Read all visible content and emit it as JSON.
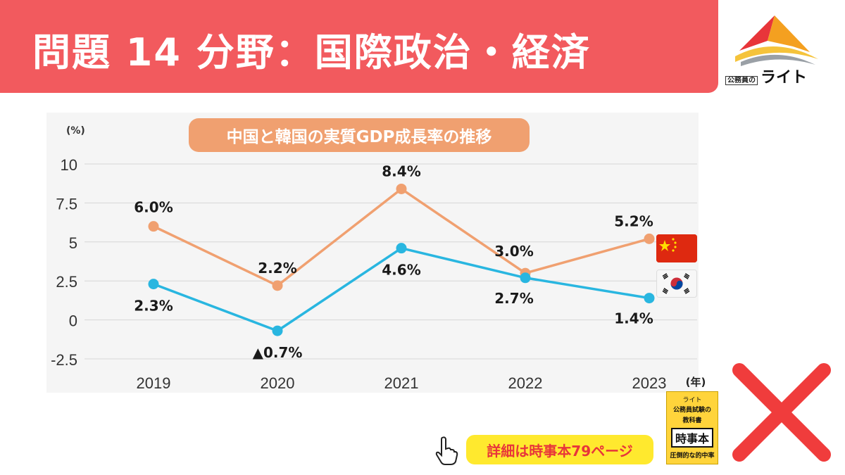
{
  "header": {
    "title": "問題 14  分野：国際政治・経済"
  },
  "logo": {
    "small_text": "公務員の",
    "brand_text": "ライト",
    "icon": "brand-logo-icon"
  },
  "chart_data": {
    "type": "line",
    "title": "中国と韓国の実質GDP成長率の推移",
    "ylabel": "(%)",
    "xlabel": "(年)",
    "categories": [
      "2019",
      "2020",
      "2021",
      "2022",
      "2023"
    ],
    "yticks": [
      "10",
      "7.5",
      "5",
      "2.5",
      "0",
      "-2.5"
    ],
    "ylim": [
      -2.5,
      10
    ],
    "grid": true,
    "series": [
      {
        "values": [
          6.0,
          2.2,
          8.4,
          3.0,
          5.2
        ],
        "labels": [
          "6.0%",
          "2.2%",
          "8.4%",
          "3.0%",
          "5.2%"
        ],
        "color": "#f0a070",
        "marker_icon": "china-flag-icon"
      },
      {
        "values": [
          2.3,
          -0.7,
          4.6,
          2.7,
          1.4
        ],
        "labels": [
          "2.3%",
          "▲0.7%",
          "4.6%",
          "2.7%",
          "1.4%"
        ],
        "color": "#29b6e0",
        "marker_icon": "korea-flag-icon"
      }
    ]
  },
  "book": {
    "brand": "ライト",
    "title_line1": "公務員試験の",
    "title_line2": "教科書",
    "main_title": "時事本",
    "bottom_text": "圧倒的な的中率"
  },
  "detail_note": "詳細は時事本79ページ",
  "icons": {
    "pointer": "pointing-hand-icon",
    "cross": "red-cross-icon"
  },
  "colors": {
    "header_bg": "#f25a5e",
    "title_pill_bg": "#f0a070",
    "detail_pill_bg": "#ffe92e",
    "detail_text": "#e8353a",
    "cross": "#f03c3c"
  }
}
